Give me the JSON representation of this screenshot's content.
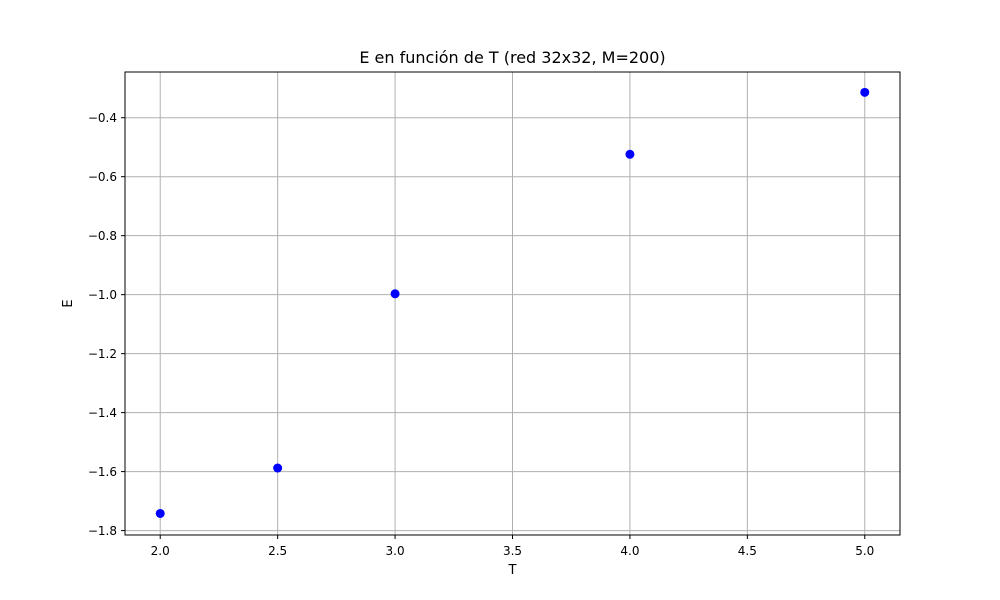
{
  "chart_data": {
    "type": "scatter",
    "title": "E en función de T (red 32x32, M=200)",
    "xlabel": "T",
    "ylabel": "E",
    "xlim": [
      1.85,
      5.15
    ],
    "ylim": [
      -1.815,
      -0.245
    ],
    "xticks": [
      2.0,
      2.5,
      3.0,
      3.5,
      4.0,
      4.5,
      5.0
    ],
    "xtick_labels": [
      "2.0",
      "2.5",
      "3.0",
      "3.5",
      "4.0",
      "4.5",
      "5.0"
    ],
    "yticks": [
      -1.8,
      -1.6,
      -1.4,
      -1.2,
      -1.0,
      -0.8,
      -0.6,
      -0.4
    ],
    "ytick_labels": [
      "−1.8",
      "−1.6",
      "−1.4",
      "−1.2",
      "−1.0",
      "−0.8",
      "−0.6",
      "−0.4"
    ],
    "grid": true,
    "marker_color": "#0000ff",
    "series": [
      {
        "x": [
          2.0,
          2.5,
          3.0,
          4.0,
          5.0
        ],
        "y": [
          -1.742,
          -1.588,
          -0.997,
          -0.524,
          -0.314
        ]
      }
    ]
  }
}
